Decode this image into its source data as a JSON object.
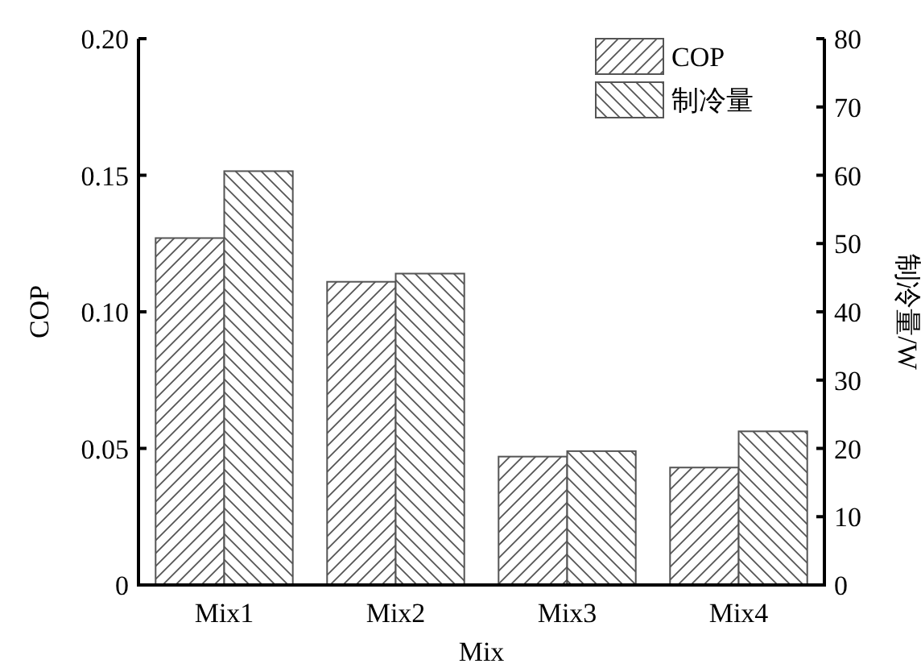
{
  "chart_data": {
    "type": "bar",
    "xlabel": "Mix",
    "ylabel": "COP",
    "y2label": "制冷量/W",
    "categories": [
      "Mix1",
      "Mix2",
      "Mix3",
      "Mix4"
    ],
    "series": [
      {
        "name": "COP",
        "color": "#555555",
        "values": [
          0.127,
          0.111,
          0.047,
          0.043
        ]
      },
      {
        "name": "制冷量",
        "color": "#555555",
        "axis": "y2",
        "values": [
          60.6,
          45.6,
          19.6,
          22.5
        ]
      }
    ],
    "ylim": [
      0,
      0.2
    ],
    "yticks": [
      0,
      {
        "value": 0.05,
        "label": "0.05"
      },
      {
        "value": 0.1,
        "label": "0.10"
      },
      {
        "value": 0.15,
        "label": "0.15"
      },
      {
        "value": 0.2,
        "label": "0.20"
      }
    ],
    "y2lim": [
      0,
      80
    ],
    "y2ticks": [
      0,
      10,
      20,
      30,
      40,
      50,
      60,
      70,
      80
    ],
    "legend": "top right",
    "grid": false
  }
}
